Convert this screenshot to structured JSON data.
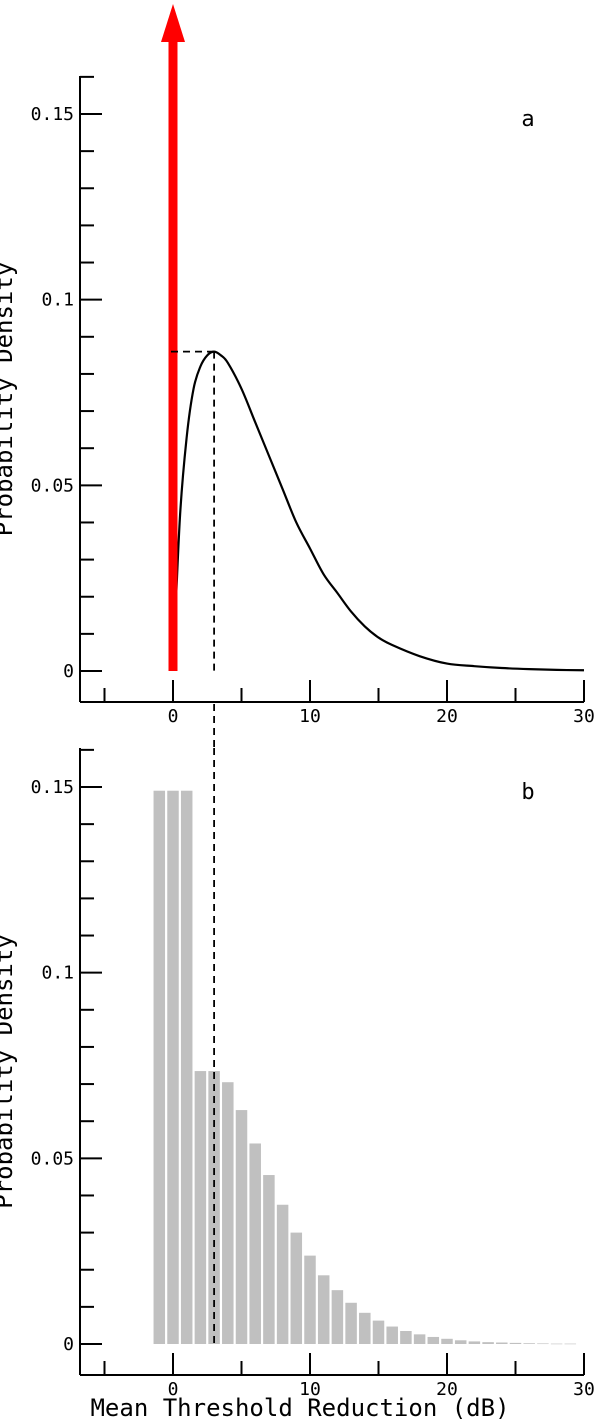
{
  "chart_data": [
    {
      "panel": "a",
      "type": "line",
      "panel_label": "a",
      "ylabel": "Probability Density",
      "xlabel": "",
      "xlim": [
        -5,
        30
      ],
      "ylim": [
        0,
        0.16
      ],
      "x_ticks": [
        0,
        10,
        20,
        30
      ],
      "y_ticks": [
        0,
        0.05,
        0.1,
        0.15
      ],
      "x_tick_labels": [
        "0",
        "10",
        "20",
        "30"
      ],
      "y_tick_labels": [
        "0",
        "0.05",
        "0.1",
        "0.15"
      ],
      "x_minor_step": 5,
      "y_minor_step": 0.01,
      "impulse": {
        "x": 0,
        "color": "#ff0000"
      },
      "curve": {
        "x": [
          0,
          0.5,
          1,
          1.5,
          2,
          2.5,
          3,
          3.5,
          4,
          5,
          6,
          7,
          8,
          9,
          10,
          11,
          12,
          13,
          14,
          15,
          16,
          18,
          20,
          22,
          24,
          26,
          28,
          30
        ],
        "y": [
          0,
          0.041,
          0.063,
          0.076,
          0.082,
          0.085,
          0.086,
          0.085,
          0.083,
          0.076,
          0.067,
          0.058,
          0.049,
          0.04,
          0.033,
          0.026,
          0.021,
          0.016,
          0.012,
          0.009,
          0.007,
          0.004,
          0.002,
          0.0013,
          0.0008,
          0.0005,
          0.0003,
          0.0002
        ]
      },
      "peak": {
        "x": 3,
        "y": 0.086
      }
    },
    {
      "panel": "b",
      "type": "bar",
      "panel_label": "b",
      "ylabel": "Probability Density",
      "xlabel": "Mean Threshold Reduction (dB)",
      "xlim": [
        -5,
        30
      ],
      "ylim": [
        0,
        0.16
      ],
      "x_ticks": [
        0,
        10,
        20,
        30
      ],
      "y_ticks": [
        0,
        0.05,
        0.1,
        0.15
      ],
      "x_tick_labels": [
        "0",
        "10",
        "20",
        "30"
      ],
      "y_tick_labels": [
        "0",
        "0.05",
        "0.1",
        "0.15"
      ],
      "x_minor_step": 5,
      "y_minor_step": 0.01,
      "bar_color": "#c0c0c0",
      "x": [
        -1,
        0,
        1,
        2,
        3,
        4,
        5,
        6,
        7,
        8,
        9,
        10,
        11,
        12,
        13,
        14,
        15,
        16,
        17,
        18,
        19,
        20,
        21,
        22,
        23,
        24,
        25,
        26,
        27,
        28,
        29
      ],
      "values": [
        0.149,
        0.149,
        0.149,
        0.0735,
        0.0735,
        0.0705,
        0.063,
        0.054,
        0.0455,
        0.0375,
        0.03,
        0.0238,
        0.0185,
        0.0145,
        0.0111,
        0.0084,
        0.0063,
        0.0047,
        0.0035,
        0.0026,
        0.0019,
        0.0014,
        0.001,
        0.0007,
        0.0005,
        0.0004,
        0.0003,
        0.0002,
        0.00015,
        0.0001,
        0.0001
      ],
      "guide_x": 3
    }
  ]
}
